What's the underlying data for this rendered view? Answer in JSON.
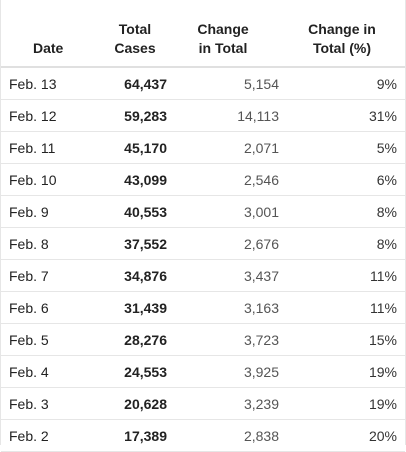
{
  "table": {
    "headers": {
      "date": [
        "Date"
      ],
      "total": [
        "Total",
        "Cases"
      ],
      "change": [
        "Change",
        "in Total"
      ],
      "pct": [
        "Change in",
        "Total (%)"
      ]
    },
    "rows": [
      {
        "date": "Feb. 13",
        "total": "64,437",
        "change": "5,154",
        "pct": "9%"
      },
      {
        "date": "Feb. 12",
        "total": "59,283",
        "change": "14,113",
        "pct": "31%"
      },
      {
        "date": "Feb. 11",
        "total": "45,170",
        "change": "2,071",
        "pct": "5%"
      },
      {
        "date": "Feb. 10",
        "total": "43,099",
        "change": "2,546",
        "pct": "6%"
      },
      {
        "date": "Feb. 9",
        "total": "40,553",
        "change": "3,001",
        "pct": "8%"
      },
      {
        "date": "Feb. 8",
        "total": "37,552",
        "change": "2,676",
        "pct": "8%"
      },
      {
        "date": "Feb. 7",
        "total": "34,876",
        "change": "3,437",
        "pct": "11%"
      },
      {
        "date": "Feb. 6",
        "total": "31,439",
        "change": "3,163",
        "pct": "11%"
      },
      {
        "date": "Feb. 5",
        "total": "28,276",
        "change": "3,723",
        "pct": "15%"
      },
      {
        "date": "Feb. 4",
        "total": "24,553",
        "change": "3,925",
        "pct": "19%"
      },
      {
        "date": "Feb. 3",
        "total": "20,628",
        "change": "3,239",
        "pct": "19%"
      },
      {
        "date": "Feb. 2",
        "total": "17,389",
        "change": "2,838",
        "pct": "20%"
      }
    ]
  }
}
